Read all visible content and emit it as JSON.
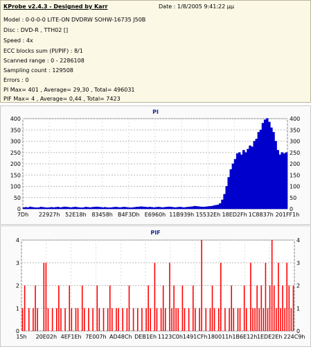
{
  "header": {
    "title": "KProbe v2.4.3 - Designed by Karr",
    "date": "Date : 1/8/2005 9:41:22 μμ"
  },
  "info": {
    "model": "Model : 0-0-0-0 LITE-ON DVDRW SOHW-16735 J50B",
    "disc": "Disc : DVD-R , TTH02 []",
    "speed": "Speed : 4x",
    "ecc": "ECC blocks sum (PI/PIF) : 8/1",
    "range": "Scanned range : 0 - 2286108",
    "count": "Sampling count : 129508",
    "errors": "Errors : 0",
    "pi_stats": "PI Max= 401 , Average= 29,30 , Total= 496031",
    "pif_stats": "PIF Max= 4 , Average= 0,44 , Total= 7423"
  },
  "colors": {
    "plot": "#ff0000",
    "pi_series": "#0000cc",
    "pif_series": "#ff0000",
    "title": "#1e2a8f"
  },
  "chart_data": [
    {
      "type": "area",
      "title": "PI",
      "ylim": [
        0,
        400
      ],
      "yticks": [
        0,
        50,
        100,
        150,
        200,
        250,
        300,
        350,
        400
      ],
      "xticks": [
        "7Dh",
        "22927h",
        "52E18h",
        "83458h",
        "B4F3Dh",
        "E6960h",
        "11B939h",
        "15532Eh",
        "18ED2Fh",
        "1C8837h",
        "201FF1h"
      ],
      "grid": true,
      "series": [
        {
          "values": [
            6,
            7,
            6,
            9,
            7,
            6,
            5,
            6,
            8,
            7,
            6,
            5,
            6,
            7,
            6,
            7,
            8,
            6,
            7,
            9,
            8,
            7,
            6,
            7,
            8,
            7,
            6,
            5,
            6,
            8,
            7,
            6,
            7,
            8,
            9,
            8,
            7,
            6,
            7,
            6,
            5,
            6,
            7,
            8,
            7,
            6,
            7,
            8,
            7,
            6,
            5,
            6,
            7,
            8,
            9,
            10,
            9,
            8,
            7,
            8,
            7,
            6,
            7,
            8,
            7,
            6,
            7,
            8,
            9,
            8,
            7,
            6,
            7,
            8,
            7,
            6,
            7,
            8,
            9,
            10,
            12,
            11,
            10,
            9,
            8,
            9,
            10,
            11,
            12,
            14,
            16,
            18,
            24,
            40,
            65,
            100,
            140,
            175,
            200,
            220,
            245,
            250,
            240,
            260,
            250,
            265,
            280,
            275,
            300,
            310,
            340,
            350,
            380,
            395,
            401,
            385,
            360,
            340,
            300,
            260,
            240,
            250,
            245,
            250
          ]
        }
      ]
    },
    {
      "type": "bar",
      "title": "PIF",
      "ylim": [
        0,
        4
      ],
      "yticks": [
        0,
        1,
        2,
        3,
        4
      ],
      "xticks": [
        "15h",
        "20E02h",
        "4EF1Eh",
        "7E007h",
        "AD48Ch",
        "DEB1Eh",
        "1123C0h",
        "1491CFh",
        "180011h",
        "1B6E12h",
        "1EDE2Eh",
        "224C9h"
      ],
      "grid": true,
      "series": [
        {
          "values": [
            1,
            2,
            0,
            1,
            0,
            1,
            2,
            1,
            0,
            0,
            3,
            3,
            1,
            0,
            1,
            0,
            1,
            2,
            1,
            0,
            1,
            0,
            2,
            1,
            0,
            1,
            1,
            0,
            2,
            1,
            0,
            1,
            0,
            1,
            0,
            2,
            1,
            0,
            1,
            0,
            1,
            2,
            1,
            0,
            1,
            1,
            0,
            1,
            0,
            1,
            2,
            0,
            1,
            0,
            1,
            0,
            1,
            0,
            1,
            2,
            1,
            0,
            3,
            1,
            0,
            1,
            2,
            1,
            0,
            3,
            1,
            2,
            1,
            1,
            0,
            2,
            1,
            0,
            1,
            0,
            2,
            1,
            0,
            1,
            4,
            0,
            1,
            0,
            1,
            2,
            1,
            0,
            1,
            3,
            0,
            1,
            0,
            1,
            2,
            1,
            0,
            1,
            1,
            0,
            2,
            1,
            0,
            3,
            1,
            1,
            2,
            1,
            2,
            1,
            3,
            1,
            2,
            4,
            2,
            1,
            3,
            1,
            2,
            1,
            3,
            2,
            1,
            2
          ]
        }
      ]
    }
  ]
}
